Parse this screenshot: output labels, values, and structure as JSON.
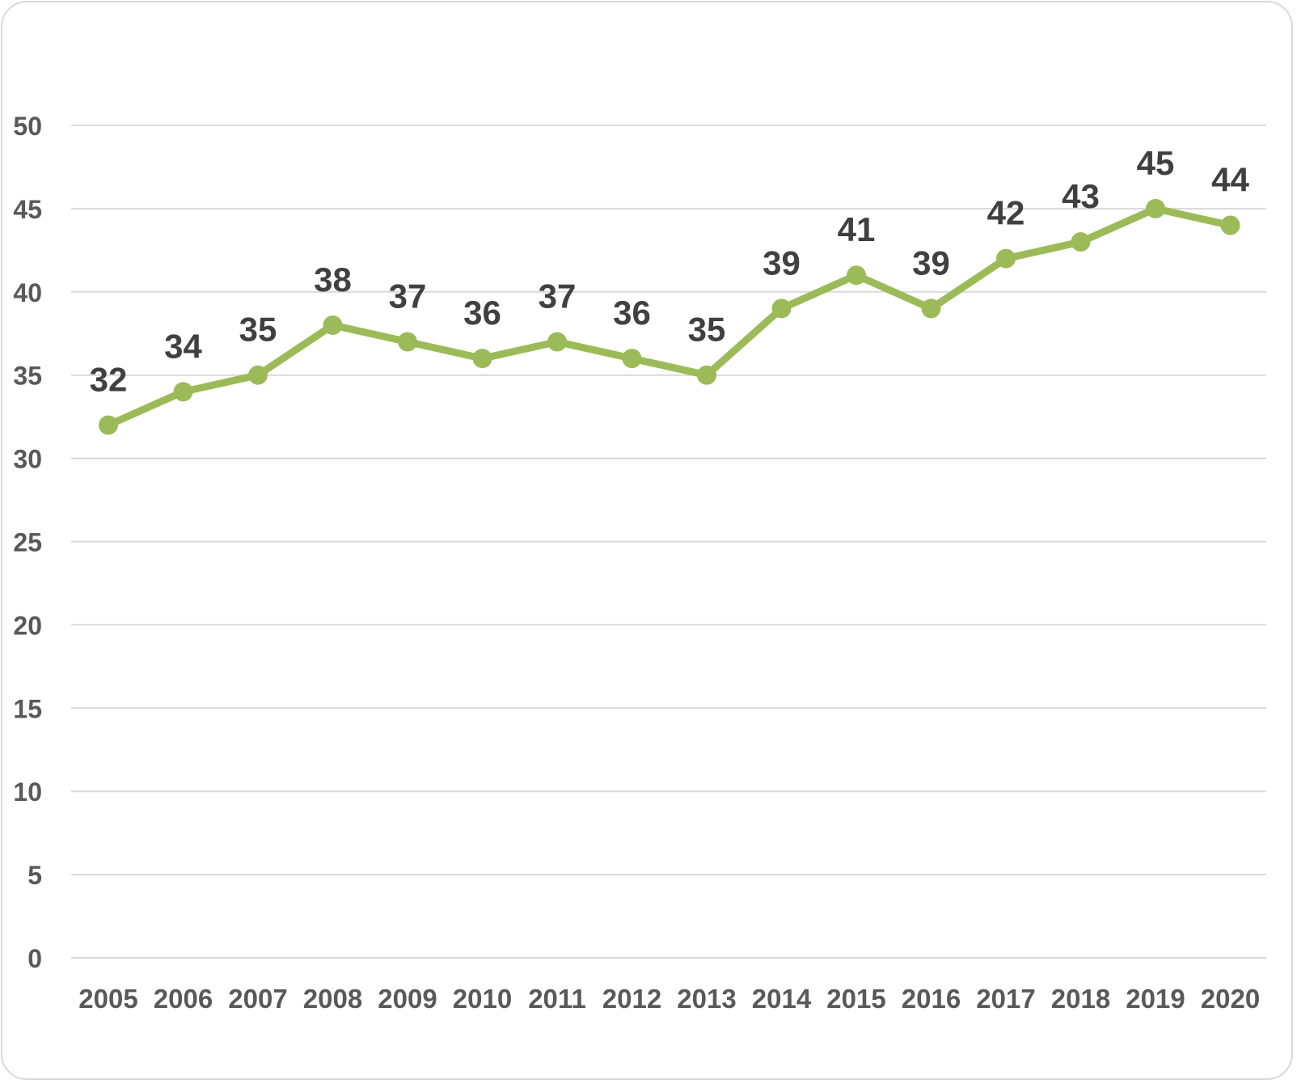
{
  "chart_data": {
    "type": "line",
    "title": "",
    "xlabel": "",
    "ylabel": "",
    "categories": [
      "2005",
      "2006",
      "2007",
      "2008",
      "2009",
      "2010",
      "2011",
      "2012",
      "2013",
      "2014",
      "2015",
      "2016",
      "2017",
      "2018",
      "2019",
      "2020"
    ],
    "series": [
      {
        "values": [
          32,
          34,
          35,
          38,
          37,
          36,
          37,
          36,
          35,
          39,
          41,
          39,
          42,
          43,
          45,
          44
        ]
      }
    ],
    "ylim": [
      0,
      50
    ],
    "yticks": [
      0,
      5,
      10,
      15,
      20,
      25,
      30,
      35,
      40,
      45,
      50
    ],
    "grid": true,
    "data_labels": true,
    "colors": {
      "line": "#9bbb59",
      "grid": "#d9d9d9",
      "tick_text": "#595959",
      "label_text": "#404040"
    }
  }
}
